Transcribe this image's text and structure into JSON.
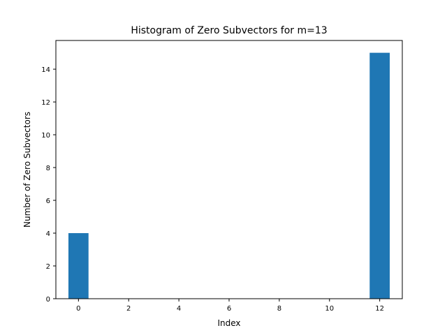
{
  "chart_data": {
    "type": "bar",
    "title": "Histogram of Zero Subvectors for m=13",
    "xlabel": "Index",
    "ylabel": "Number of Zero Subvectors",
    "x": [
      0,
      1,
      2,
      3,
      4,
      5,
      6,
      7,
      8,
      9,
      10,
      11,
      12
    ],
    "values": [
      4,
      0,
      0,
      0,
      0,
      0,
      0,
      0,
      0,
      0,
      0,
      0,
      15
    ],
    "xlim": [
      -0.9,
      12.9
    ],
    "ylim": [
      0,
      15.75
    ],
    "xticks": [
      0,
      2,
      4,
      6,
      8,
      10,
      12
    ],
    "yticks": [
      0,
      2,
      4,
      6,
      8,
      10,
      12,
      14
    ],
    "grid": false,
    "bar_color": "#1f77b4"
  }
}
